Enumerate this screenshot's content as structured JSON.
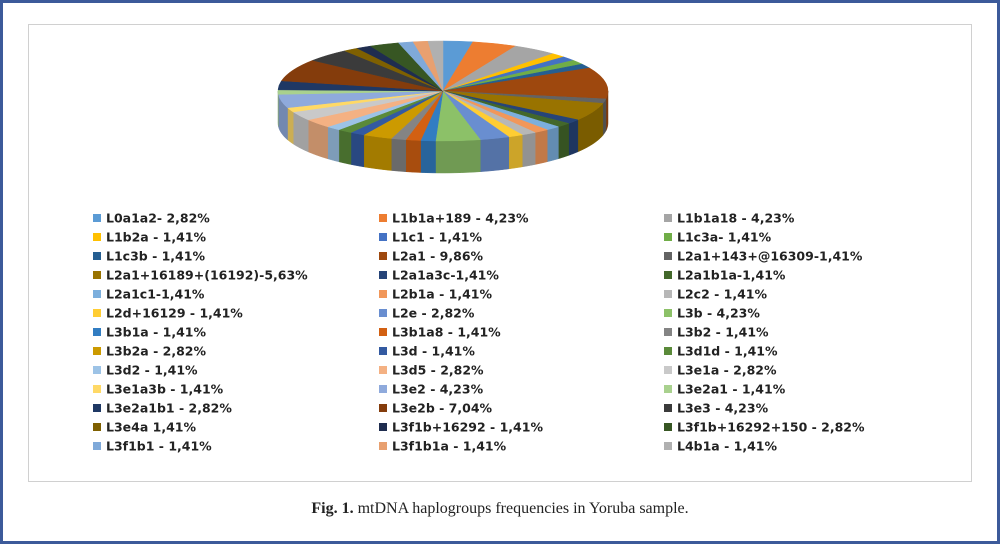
{
  "chart_data": {
    "type": "pie",
    "categories": [
      "L0a1a2- 2,82%",
      "L1b1a+189 - 4,23%",
      "L1b1a18 - 4,23%",
      "L1b2a - 1,41%",
      "L1c1 - 1,41%",
      "L1c3a- 1,41%",
      "L1c3b - 1,41%",
      "L2a1 - 9,86%",
      "L2a1+143+@16309-1,41%",
      "L2a1+16189+(16192)-5,63%",
      "L2a1a3c-1,41%",
      "L2a1b1a-1,41%",
      "L2a1c1-1,41%",
      "L2b1a - 1,41%",
      "L2c2 - 1,41%",
      "L2d+16129 - 1,41%",
      "L2e - 2,82%",
      "L3b - 4,23%",
      "L3b1a - 1,41%",
      "L3b1a8 - 1,41%",
      "L3b2 - 1,41%",
      "L3b2a - 2,82%",
      "L3d - 1,41%",
      "L3d1d - 1,41%",
      "L3d2 - 1,41%",
      "L3d5 - 2,82%",
      "L3e1a - 2,82%",
      "L3e1a3b - 1,41%",
      "L3e2 - 4,23%",
      "L3e2a1 - 1,41%",
      "L3e2a1b1 - 2,82%",
      "L3e2b - 7,04%",
      "L3e3 - 4,23%",
      "L3e4a 1,41%",
      "L3f1b+16292 - 1,41%",
      "L3f1b+16292+150 - 2,82%",
      "L3f1b1 - 1,41%",
      "L3f1b1a - 1,41%",
      "L4b1a - 1,41%"
    ],
    "values": [
      2.82,
      4.23,
      4.23,
      1.41,
      1.41,
      1.41,
      1.41,
      9.86,
      1.41,
      5.63,
      1.41,
      1.41,
      1.41,
      1.41,
      1.41,
      1.41,
      2.82,
      4.23,
      1.41,
      1.41,
      1.41,
      2.82,
      1.41,
      1.41,
      1.41,
      2.82,
      2.82,
      1.41,
      4.23,
      1.41,
      2.82,
      7.04,
      4.23,
      1.41,
      1.41,
      2.82,
      1.41,
      1.41,
      1.41
    ],
    "colors": [
      "#5b9bd5",
      "#ed7d31",
      "#a5a5a5",
      "#ffc000",
      "#4472c4",
      "#70ad47",
      "#255e91",
      "#9e480e",
      "#636363",
      "#997300",
      "#264478",
      "#43682b",
      "#7cafdd",
      "#f1975a",
      "#b7b7b7",
      "#ffcd33",
      "#698ed0",
      "#8cc168",
      "#327dc2",
      "#d26012",
      "#848484",
      "#cc9a00",
      "#335aa1",
      "#5a8a39",
      "#9dc3e6",
      "#f4b183",
      "#c9c9c9",
      "#ffd966",
      "#8faadc",
      "#a9d18e",
      "#1f3864",
      "#843c0c",
      "#3b3b3b",
      "#7f6000",
      "#1f2d4f",
      "#375623",
      "#7fa9d9",
      "#e8a070",
      "#b0b0b0"
    ],
    "legend": "bottom"
  },
  "caption": {
    "label": "Fig. 1.",
    "text": "mtDNA haplogroups frequencies in Yoruba sample."
  }
}
